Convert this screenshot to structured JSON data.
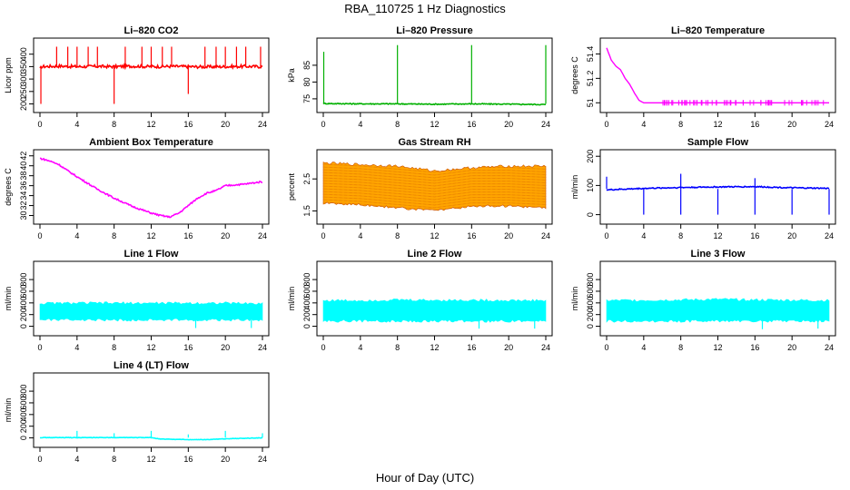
{
  "figure": {
    "title": "RBA_110725  1 Hz Diagnostics",
    "xlabel": "Hour of Day (UTC)"
  },
  "chart_data": [
    {
      "type": "line",
      "title": "Li–820 CO2",
      "ylabel": "Licor ppm",
      "color": "#ff0000",
      "xlim": [
        0,
        24
      ],
      "xticks": [
        0,
        4,
        8,
        12,
        16,
        20,
        24
      ],
      "ylim": [
        180,
        450
      ],
      "yticks": [
        200,
        250,
        300,
        350,
        400
      ],
      "baseline": 350,
      "noise": 12,
      "x": [
        0,
        0.2,
        2,
        4,
        6,
        8,
        10,
        12,
        14,
        16,
        18,
        20,
        22,
        24
      ],
      "y": [
        340,
        350,
        352,
        350,
        351,
        350,
        352,
        350,
        351,
        350,
        349,
        350,
        351,
        350
      ],
      "spikes": [
        {
          "x": 0.1,
          "to": 200
        },
        {
          "x": 1.8,
          "to": 430
        },
        {
          "x": 3,
          "to": 430
        },
        {
          "x": 4,
          "to": 430
        },
        {
          "x": 5.2,
          "to": 430
        },
        {
          "x": 6.2,
          "to": 430
        },
        {
          "x": 8,
          "to": 200
        },
        {
          "x": 9.2,
          "to": 430
        },
        {
          "x": 11,
          "to": 430
        },
        {
          "x": 12,
          "to": 430
        },
        {
          "x": 13.2,
          "to": 430
        },
        {
          "x": 14.2,
          "to": 430
        },
        {
          "x": 16,
          "to": 240
        },
        {
          "x": 17.8,
          "to": 430
        },
        {
          "x": 19,
          "to": 430
        },
        {
          "x": 20,
          "to": 430
        },
        {
          "x": 21.2,
          "to": 430
        },
        {
          "x": 22.2,
          "to": 430
        },
        {
          "x": 23.8,
          "to": 430
        }
      ]
    },
    {
      "type": "line",
      "title": "Li–820 Pressure",
      "ylabel": "kPa",
      "color": "#00b000",
      "xlim": [
        0,
        24
      ],
      "xticks": [
        0,
        4,
        8,
        12,
        16,
        20,
        24
      ],
      "ylim": [
        72,
        92
      ],
      "yticks": [
        75,
        80,
        85
      ],
      "baseline": 73.5,
      "noise": 0.3,
      "x": [
        0,
        4,
        8,
        12,
        16,
        20,
        24
      ],
      "y": [
        73.6,
        73.5,
        73.5,
        73.4,
        73.5,
        73.4,
        73.3
      ],
      "spikes": [
        {
          "x": 0.05,
          "to": 89
        },
        {
          "x": 8,
          "to": 91
        },
        {
          "x": 16,
          "to": 91
        },
        {
          "x": 24,
          "to": 91
        }
      ]
    },
    {
      "type": "line",
      "title": "Li–820 Temperature",
      "ylabel": "degrees C",
      "color": "#ff00ff",
      "xlim": [
        0,
        24
      ],
      "xticks": [
        0,
        4,
        8,
        12,
        16,
        20,
        24
      ],
      "ylim": [
        50.95,
        51.5
      ],
      "yticks": [
        51.0,
        51.2,
        51.4
      ],
      "baseline": null,
      "noise": 0,
      "x": [
        0,
        0.5,
        1,
        1.5,
        2,
        2.5,
        3,
        3.5,
        4,
        8,
        12,
        16,
        20,
        24
      ],
      "y": [
        51.45,
        51.35,
        51.3,
        51.27,
        51.2,
        51.15,
        51.08,
        51.02,
        51.0,
        51.0,
        51.0,
        51.0,
        51.0,
        51.0
      ],
      "spikes": []
    },
    {
      "type": "line",
      "title": "Ambient Box Temperature",
      "ylabel": "degrees C",
      "color": "#ff00ff",
      "xlim": [
        0,
        24
      ],
      "xticks": [
        0,
        4,
        8,
        12,
        16,
        20,
        24
      ],
      "ylim": [
        29,
        42.5
      ],
      "yticks": [
        30,
        32,
        34,
        36,
        38,
        40,
        42
      ],
      "baseline": null,
      "noise": 0.3,
      "x": [
        0,
        1,
        2,
        3,
        4,
        6,
        8,
        10,
        12,
        13,
        14,
        15,
        16,
        17,
        18,
        19,
        20,
        22,
        24
      ],
      "y": [
        41.5,
        41,
        40.3,
        39,
        37.8,
        35.5,
        33.5,
        31.8,
        30.5,
        30,
        29.7,
        30.5,
        32,
        33.5,
        34.5,
        35,
        36,
        36.3,
        36.8
      ],
      "spikes": []
    },
    {
      "type": "band",
      "title": "Gas Stream RH",
      "ylabel": "percent",
      "color": "#ffa500",
      "edge": "#cc5500",
      "xlim": [
        0,
        24
      ],
      "xticks": [
        0,
        4,
        8,
        12,
        16,
        20,
        24
      ],
      "ylim": [
        1.2,
        3.3
      ],
      "yticks": [
        1.5,
        2.5
      ],
      "x": [
        0,
        4,
        8,
        12,
        16,
        20,
        24
      ],
      "low": [
        1.75,
        1.7,
        1.6,
        1.5,
        1.65,
        1.65,
        1.6
      ],
      "high": [
        3.0,
        2.95,
        2.9,
        2.75,
        2.85,
        2.9,
        2.9
      ]
    },
    {
      "type": "line",
      "title": "Sample Flow",
      "ylabel": "ml/min",
      "color": "#0000ff",
      "xlim": [
        0,
        24
      ],
      "xticks": [
        0,
        4,
        8,
        12,
        16,
        20,
        24
      ],
      "ylim": [
        -20,
        210
      ],
      "yticks": [
        0,
        100,
        200
      ],
      "baseline": 88,
      "noise": 4,
      "x": [
        0,
        4,
        8,
        12,
        16,
        20,
        24
      ],
      "y": [
        85,
        90,
        93,
        95,
        96,
        92,
        90
      ],
      "spikes": [
        {
          "x": 0,
          "to": 130
        },
        {
          "x": 4,
          "to": 0
        },
        {
          "x": 8,
          "to": 0
        },
        {
          "x": 8,
          "to": 140
        },
        {
          "x": 12,
          "to": 0
        },
        {
          "x": 16,
          "to": 0
        },
        {
          "x": 16,
          "to": 125
        },
        {
          "x": 20,
          "to": 0
        },
        {
          "x": 24,
          "to": 0
        }
      ]
    },
    {
      "type": "band",
      "title": "Line 1 Flow",
      "ylabel": "ml/min",
      "color": "#00ffff",
      "xlim": [
        0,
        24
      ],
      "xticks": [
        0,
        4,
        8,
        12,
        16,
        20,
        24
      ],
      "ylim": [
        -100,
        1050
      ],
      "yticks": [
        0,
        200,
        400,
        600,
        800
      ],
      "x": [
        0,
        4,
        8,
        12,
        16,
        20,
        24
      ],
      "low": [
        110,
        110,
        110,
        110,
        110,
        110,
        110
      ],
      "high": [
        390,
        395,
        395,
        395,
        395,
        395,
        385
      ],
      "spikes": [
        {
          "x": 16.8,
          "to": -30
        },
        {
          "x": 22.8,
          "to": -30
        }
      ]
    },
    {
      "type": "band",
      "title": "Line 2 Flow",
      "ylabel": "ml/min",
      "color": "#00ffff",
      "xlim": [
        0,
        24
      ],
      "xticks": [
        0,
        4,
        8,
        12,
        16,
        20,
        24
      ],
      "ylim": [
        -100,
        1050
      ],
      "yticks": [
        0,
        200,
        400,
        600,
        800
      ],
      "x": [
        0,
        4,
        8,
        12,
        16,
        20,
        24
      ],
      "low": [
        90,
        90,
        90,
        90,
        90,
        90,
        90
      ],
      "high": [
        440,
        440,
        450,
        445,
        445,
        440,
        440
      ],
      "spikes": [
        {
          "x": 16.8,
          "to": -40
        },
        {
          "x": 22.8,
          "to": -40
        }
      ]
    },
    {
      "type": "band",
      "title": "Line 3 Flow",
      "ylabel": "ml/min",
      "color": "#00ffff",
      "xlim": [
        0,
        24
      ],
      "xticks": [
        0,
        4,
        8,
        12,
        16,
        20,
        24
      ],
      "ylim": [
        -100,
        1050
      ],
      "yticks": [
        0,
        200,
        400,
        600,
        800
      ],
      "x": [
        0,
        4,
        8,
        12,
        16,
        20,
        24
      ],
      "low": [
        90,
        90,
        90,
        90,
        90,
        90,
        90
      ],
      "high": [
        440,
        445,
        450,
        460,
        450,
        445,
        440
      ],
      "spikes": [
        {
          "x": 16.8,
          "to": -50
        },
        {
          "x": 22.8,
          "to": -40
        }
      ]
    },
    {
      "type": "line",
      "title": "Line 4 (LT) Flow",
      "ylabel": "ml/min",
      "color": "#00ffff",
      "xlim": [
        0,
        24
      ],
      "xticks": [
        0,
        4,
        8,
        12,
        16,
        20,
        24
      ],
      "ylim": [
        -100,
        1050
      ],
      "yticks": [
        0,
        200,
        400,
        600,
        800
      ],
      "baseline": 5,
      "noise": 8,
      "x": [
        0,
        4,
        8,
        12,
        13,
        16,
        18,
        20,
        24
      ],
      "y": [
        5,
        5,
        5,
        5,
        -20,
        -30,
        -30,
        -15,
        0
      ],
      "spikes": [
        {
          "x": 4,
          "to": 120
        },
        {
          "x": 8,
          "to": 80
        },
        {
          "x": 12,
          "to": 120
        },
        {
          "x": 16,
          "to": 60
        },
        {
          "x": 20,
          "to": 120
        },
        {
          "x": 24,
          "to": 80
        }
      ]
    }
  ]
}
